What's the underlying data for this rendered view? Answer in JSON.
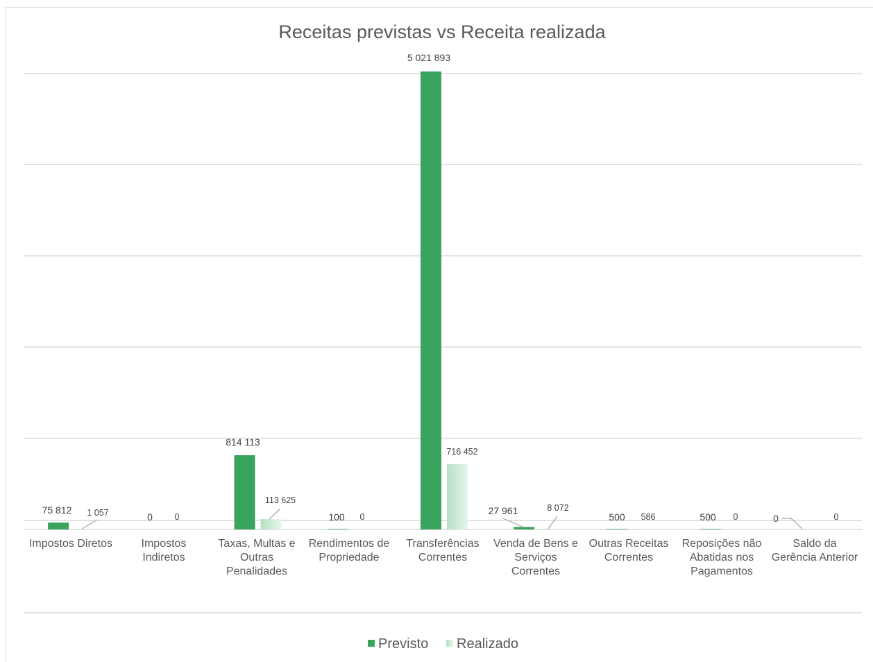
{
  "colors": {
    "previsto": "#3aa35e",
    "realizado": "#c4e7cf",
    "grid": "#d9d9d9",
    "text": "#595959"
  },
  "chart_data": {
    "type": "bar",
    "title": "Receitas previstas vs Receita realizada",
    "xlabel": "",
    "ylabel": "",
    "ylim": [
      0,
      5000000
    ],
    "grid": true,
    "legend_position": "bottom",
    "categories": [
      [
        "Impostos Diretos"
      ],
      [
        "Impostos",
        "Indiretos"
      ],
      [
        "Taxas, Multas e",
        "Outras",
        "Penalidades"
      ],
      [
        "Rendimentos de",
        "Propriedade"
      ],
      [
        "Transferências",
        "Correntes"
      ],
      [
        "Venda de Bens e",
        "Serviços",
        "Correntes"
      ],
      [
        "Outras Receitas",
        "Correntes"
      ],
      [
        "Reposições não",
        "Abatidas nos",
        "Pagamentos"
      ],
      [
        "Saldo da",
        "Gerência Anterior"
      ]
    ],
    "series": [
      {
        "name": "Previsto",
        "values": [
          75812,
          0,
          814113,
          100,
          5021893,
          27961,
          500,
          500,
          0
        ],
        "labels": [
          "75 812",
          "0",
          "814 113",
          "100",
          "5 021 893",
          "27 961",
          "500",
          "500",
          "0"
        ]
      },
      {
        "name": "Realizado",
        "values": [
          1057,
          0,
          113625,
          0,
          716452,
          8072,
          586,
          0,
          0
        ],
        "labels": [
          "1 057",
          "0",
          "113 625",
          "0",
          "716 452",
          "8 072",
          "586",
          "0",
          "0"
        ]
      }
    ]
  }
}
